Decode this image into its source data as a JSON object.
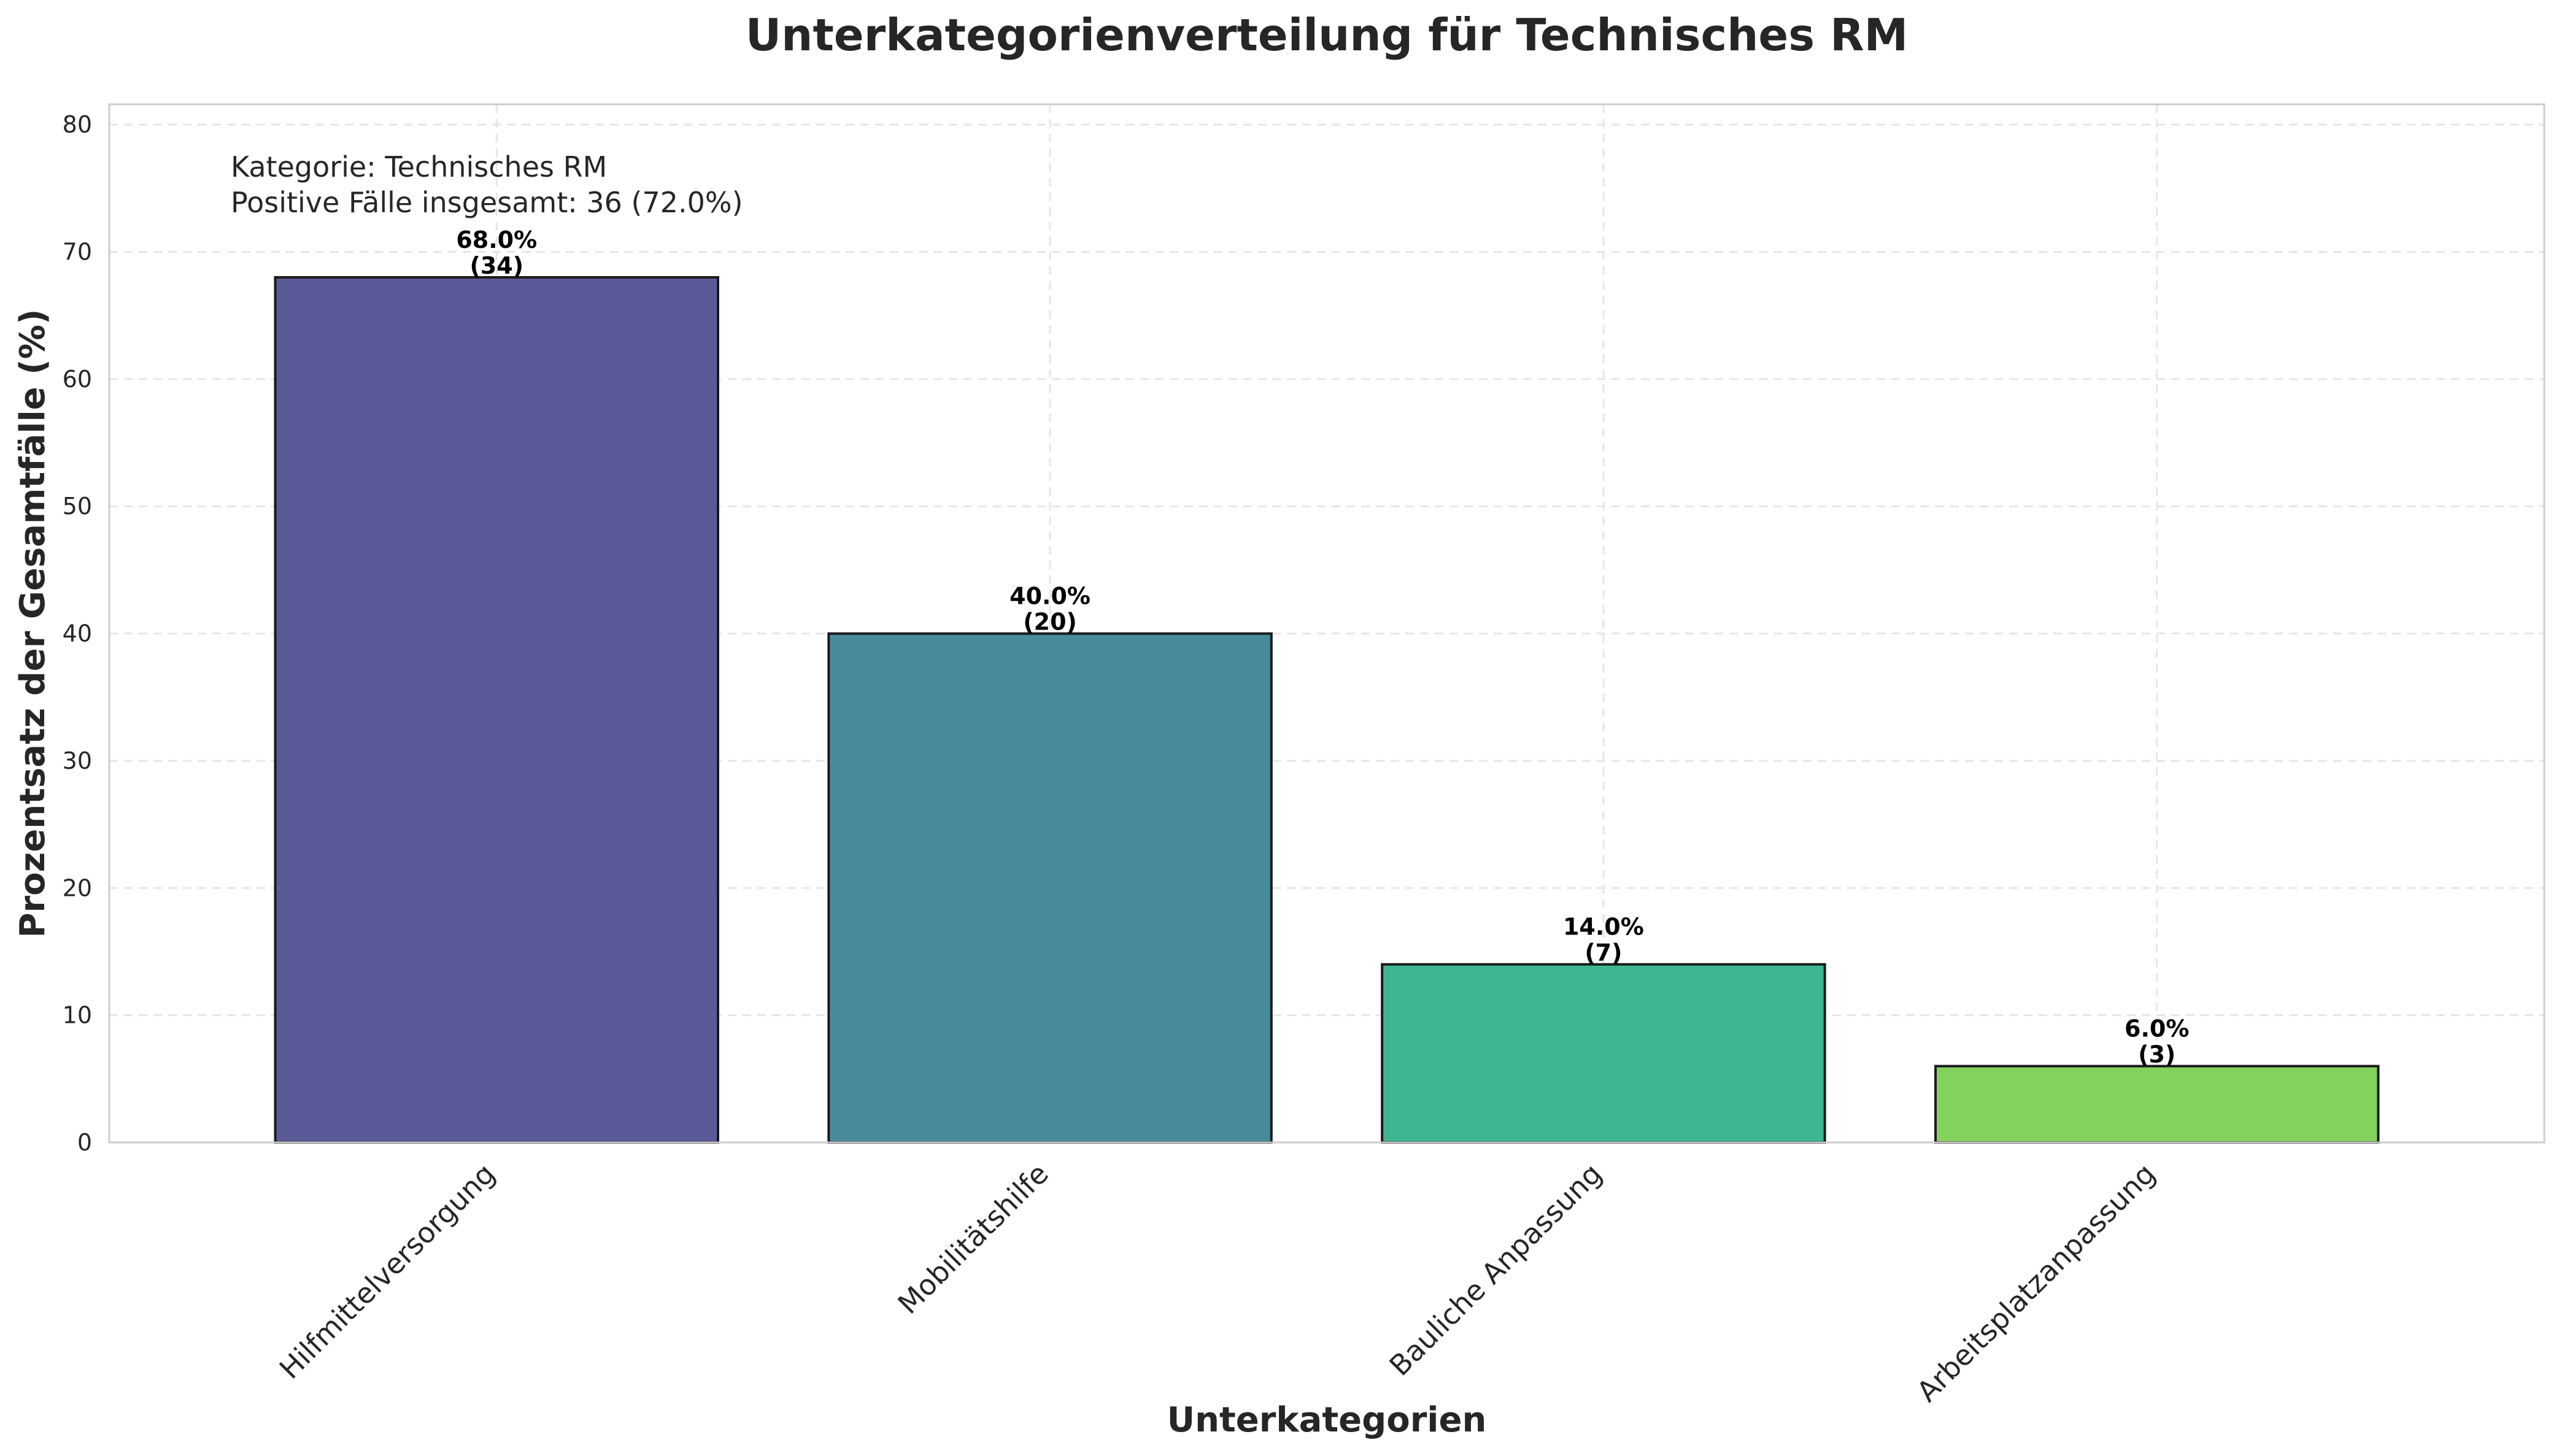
{
  "chart_data": {
    "type": "bar",
    "title": "Unterkategorienverteilung für Technisches RM",
    "xlabel": "Unterkategorien",
    "ylabel": "Prozentsatz der Gesamtfälle (%)",
    "ylim": [
      0,
      81.6
    ],
    "yticks": [
      0,
      10,
      20,
      30,
      40,
      50,
      60,
      70,
      80
    ],
    "grid": true,
    "categories": [
      "Hilfmittelversorgung",
      "Mobilitätshilfe",
      "Bauliche Anpassung",
      "Arbeitsplatzanpassung"
    ],
    "values": [
      68.0,
      40.0,
      14.0,
      6.0
    ],
    "counts": [
      34,
      20,
      7,
      3
    ],
    "value_labels": [
      "68.0%",
      "40.0%",
      "14.0%",
      "6.0%"
    ],
    "count_labels": [
      "(34)",
      "(20)",
      "(7)",
      "(3)"
    ],
    "colors": [
      "#5a5a98",
      "#488c9c",
      "#3db592",
      "#84d25e"
    ],
    "annotation": {
      "line1": "Kategorie: Technisches RM",
      "line2": "Positive Fälle insgesamt: 36 (72.0%)"
    }
  }
}
